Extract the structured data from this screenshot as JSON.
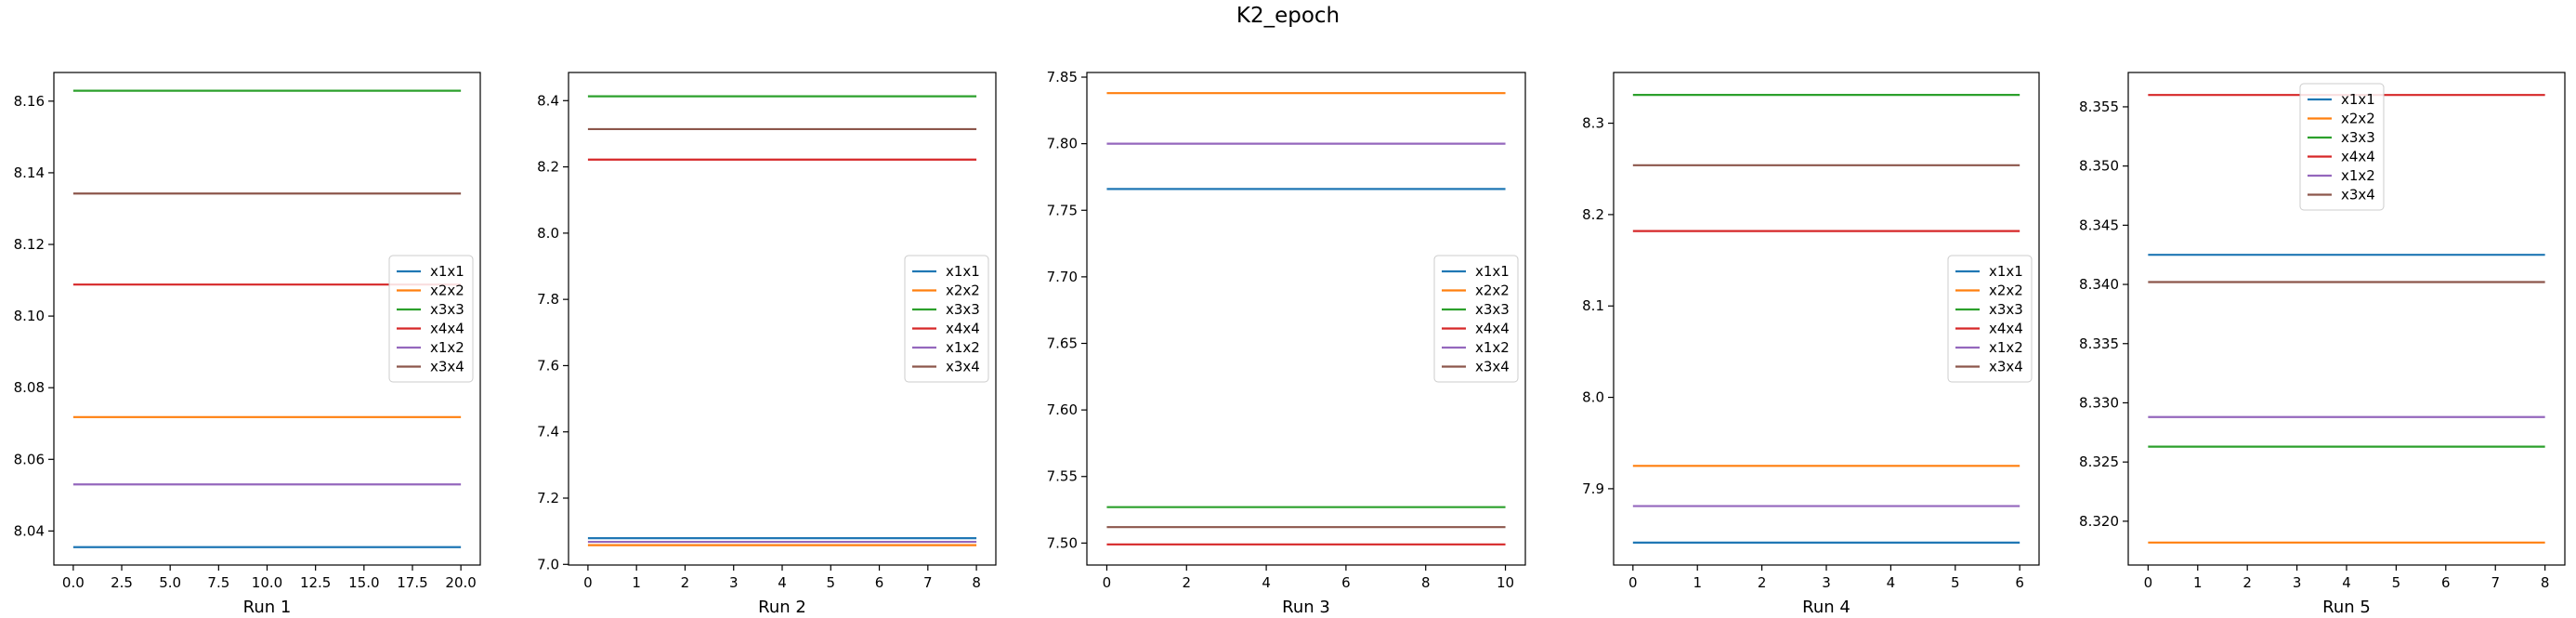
{
  "figure": {
    "title": "K2_epoch"
  },
  "legend_labels": [
    "x1x1",
    "x2x2",
    "x3x3",
    "x4x4",
    "x1x2",
    "x3x4"
  ],
  "colors": {
    "x1x1": "#1f77b4",
    "x2x2": "#ff7f0e",
    "x3x3": "#2ca02c",
    "x4x4": "#d62728",
    "x1x2": "#9467bd",
    "x3x4": "#8c564b"
  },
  "chart_data": [
    {
      "type": "line",
      "xlabel": "Run 1",
      "xlim": [
        -1,
        21
      ],
      "ylim": [
        8.0305,
        8.168
      ],
      "xticks": [
        "0.0",
        "2.5",
        "5.0",
        "7.5",
        "10.0",
        "12.5",
        "15.0",
        "17.5",
        "20.0"
      ],
      "yticks": [
        "8.04",
        "8.06",
        "8.08",
        "8.10",
        "8.12",
        "8.14",
        "8.16"
      ],
      "legend": "center-right",
      "x": [
        0,
        20
      ],
      "series": [
        {
          "name": "x1x1",
          "values": [
            8.0355,
            8.0355
          ]
        },
        {
          "name": "x2x2",
          "values": [
            8.0718,
            8.0718
          ]
        },
        {
          "name": "x3x3",
          "values": [
            8.1629,
            8.1629
          ]
        },
        {
          "name": "x4x4",
          "values": [
            8.1088,
            8.1088
          ]
        },
        {
          "name": "x1x2",
          "values": [
            8.053,
            8.053
          ]
        },
        {
          "name": "x3x4",
          "values": [
            8.1342,
            8.1342
          ]
        }
      ]
    },
    {
      "type": "line",
      "xlabel": "Run 2",
      "xlim": [
        -0.4,
        8.4
      ],
      "ylim": [
        6.998,
        8.485
      ],
      "xticks": [
        "0",
        "1",
        "2",
        "3",
        "4",
        "5",
        "6",
        "7",
        "8"
      ],
      "yticks": [
        "7.0",
        "7.2",
        "7.4",
        "7.6",
        "7.8",
        "8.0",
        "8.2",
        "8.4"
      ],
      "legend": "center-right",
      "x": [
        0,
        8
      ],
      "series": [
        {
          "name": "x1x1",
          "values": [
            7.079,
            7.079
          ]
        },
        {
          "name": "x2x2",
          "values": [
            7.058,
            7.058
          ]
        },
        {
          "name": "x3x3",
          "values": [
            8.413,
            8.413
          ]
        },
        {
          "name": "x4x4",
          "values": [
            8.222,
            8.222
          ]
        },
        {
          "name": "x1x2",
          "values": [
            7.068,
            7.068
          ]
        },
        {
          "name": "x3x4",
          "values": [
            8.314,
            8.314
          ]
        }
      ]
    },
    {
      "type": "line",
      "xlabel": "Run 3",
      "xlim": [
        -0.5,
        10.5
      ],
      "ylim": [
        7.4835,
        7.8535
      ],
      "xticks": [
        "0",
        "2",
        "4",
        "6",
        "8",
        "10"
      ],
      "yticks": [
        "7.50",
        "7.55",
        "7.60",
        "7.65",
        "7.70",
        "7.75",
        "7.80",
        "7.85"
      ],
      "legend": "center-right",
      "x": [
        0,
        10
      ],
      "series": [
        {
          "name": "x1x1",
          "values": [
            7.766,
            7.766
          ]
        },
        {
          "name": "x2x2",
          "values": [
            7.838,
            7.838
          ]
        },
        {
          "name": "x3x3",
          "values": [
            7.527,
            7.527
          ]
        },
        {
          "name": "x4x4",
          "values": [
            7.499,
            7.499
          ]
        },
        {
          "name": "x1x2",
          "values": [
            7.8,
            7.8
          ]
        },
        {
          "name": "x3x4",
          "values": [
            7.512,
            7.512
          ]
        }
      ]
    },
    {
      "type": "line",
      "xlabel": "Run 4",
      "xlim": [
        -0.3,
        6.3
      ],
      "ylim": [
        7.8165,
        8.3555
      ],
      "xticks": [
        "0",
        "1",
        "2",
        "3",
        "4",
        "5",
        "6"
      ],
      "yticks": [
        "7.9",
        "8.0",
        "8.1",
        "8.2",
        "8.3"
      ],
      "legend": "center-right",
      "x": [
        0,
        6
      ],
      "series": [
        {
          "name": "x1x1",
          "values": [
            7.841,
            7.841
          ]
        },
        {
          "name": "x2x2",
          "values": [
            7.925,
            7.925
          ]
        },
        {
          "name": "x3x3",
          "values": [
            8.331,
            8.331
          ]
        },
        {
          "name": "x4x4",
          "values": [
            8.182,
            8.182
          ]
        },
        {
          "name": "x1x2",
          "values": [
            7.881,
            7.881
          ]
        },
        {
          "name": "x3x4",
          "values": [
            8.254,
            8.254
          ]
        }
      ]
    },
    {
      "type": "line",
      "xlabel": "Run 5",
      "xlim": [
        -0.4,
        8.4
      ],
      "ylim": [
        8.3163,
        8.3579
      ],
      "xticks": [
        "0",
        "1",
        "2",
        "3",
        "4",
        "5",
        "6",
        "7",
        "8"
      ],
      "yticks": [
        "8.320",
        "8.325",
        "8.330",
        "8.335",
        "8.340",
        "8.345",
        "8.350",
        "8.355"
      ],
      "legend": "upper-center",
      "x": [
        0,
        8
      ],
      "series": [
        {
          "name": "x1x1",
          "values": [
            8.3425,
            8.3425
          ]
        },
        {
          "name": "x2x2",
          "values": [
            8.3182,
            8.3182
          ]
        },
        {
          "name": "x3x3",
          "values": [
            8.3263,
            8.3263
          ]
        },
        {
          "name": "x4x4",
          "values": [
            8.356,
            8.356
          ]
        },
        {
          "name": "x1x2",
          "values": [
            8.3288,
            8.3288
          ]
        },
        {
          "name": "x3x4",
          "values": [
            8.3402,
            8.3402
          ]
        }
      ]
    }
  ]
}
